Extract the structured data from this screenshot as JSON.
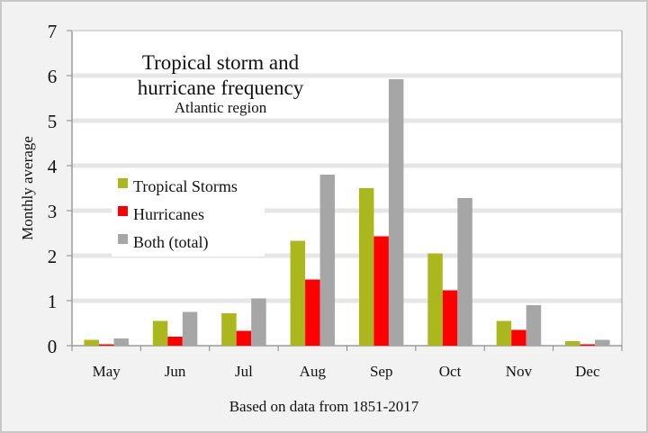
{
  "chart_data": {
    "type": "bar",
    "title": "Tropical storm and hurricane frequency",
    "subtitle": "Atlantic region",
    "xlabel": "Based on data from 1851-2017",
    "ylabel": "Monthly average",
    "ylim": [
      0,
      7
    ],
    "yticks": [
      "0",
      "1",
      "2",
      "3",
      "4",
      "5",
      "6",
      "7"
    ],
    "grid": true,
    "legend_position": "left-middle",
    "categories": [
      "May",
      "Jun",
      "Jul",
      "Aug",
      "Sep",
      "Oct",
      "Nov",
      "Dec"
    ],
    "series": [
      {
        "name": "Tropical Storms",
        "color": "#aab81e",
        "values": [
          0.13,
          0.55,
          0.72,
          2.33,
          3.5,
          2.05,
          0.55,
          0.1
        ]
      },
      {
        "name": "Hurricanes",
        "color": "#ff0000",
        "values": [
          0.03,
          0.2,
          0.33,
          1.47,
          2.43,
          1.23,
          0.35,
          0.03
        ]
      },
      {
        "name": "Both (total)",
        "color": "#a6a6a6",
        "values": [
          0.16,
          0.75,
          1.05,
          3.8,
          5.92,
          3.28,
          0.9,
          0.13
        ]
      }
    ]
  }
}
